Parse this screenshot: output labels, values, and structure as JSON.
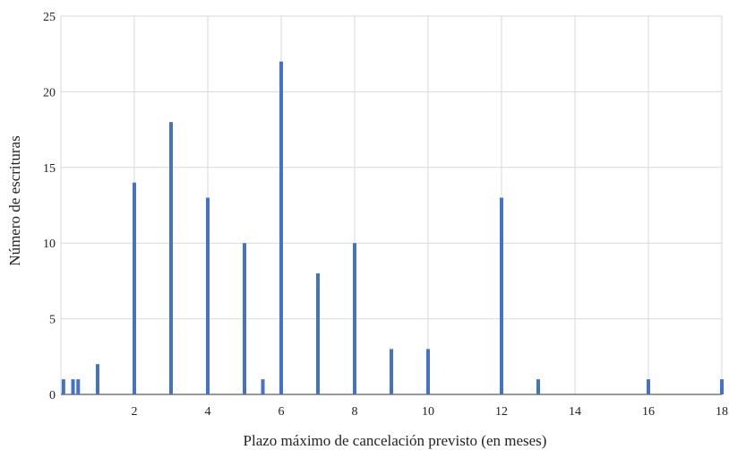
{
  "chart_data": {
    "type": "bar",
    "title": "",
    "xlabel": "Plazo máximo de cancelación previsto (en meses)",
    "ylabel": "Número de escrituras",
    "xlim": [
      0,
      18
    ],
    "ylim": [
      0,
      25
    ],
    "x_ticks": [
      2,
      4,
      6,
      8,
      10,
      12,
      14,
      16,
      18
    ],
    "y_ticks": [
      0,
      5,
      10,
      15,
      20,
      25
    ],
    "grid": true,
    "bar_color": "#4472C4",
    "grid_color": "#D9D9D9",
    "points": [
      {
        "x": 0.07,
        "y": 1
      },
      {
        "x": 0.33,
        "y": 1
      },
      {
        "x": 0.47,
        "y": 1
      },
      {
        "x": 1,
        "y": 2
      },
      {
        "x": 2,
        "y": 14
      },
      {
        "x": 3,
        "y": 18
      },
      {
        "x": 4,
        "y": 13
      },
      {
        "x": 5,
        "y": 10
      },
      {
        "x": 5.5,
        "y": 1
      },
      {
        "x": 6,
        "y": 22
      },
      {
        "x": 7,
        "y": 8
      },
      {
        "x": 8,
        "y": 10
      },
      {
        "x": 9,
        "y": 3
      },
      {
        "x": 10,
        "y": 3
      },
      {
        "x": 12,
        "y": 13
      },
      {
        "x": 13,
        "y": 1
      },
      {
        "x": 16,
        "y": 1
      },
      {
        "x": 18,
        "y": 1
      }
    ]
  }
}
